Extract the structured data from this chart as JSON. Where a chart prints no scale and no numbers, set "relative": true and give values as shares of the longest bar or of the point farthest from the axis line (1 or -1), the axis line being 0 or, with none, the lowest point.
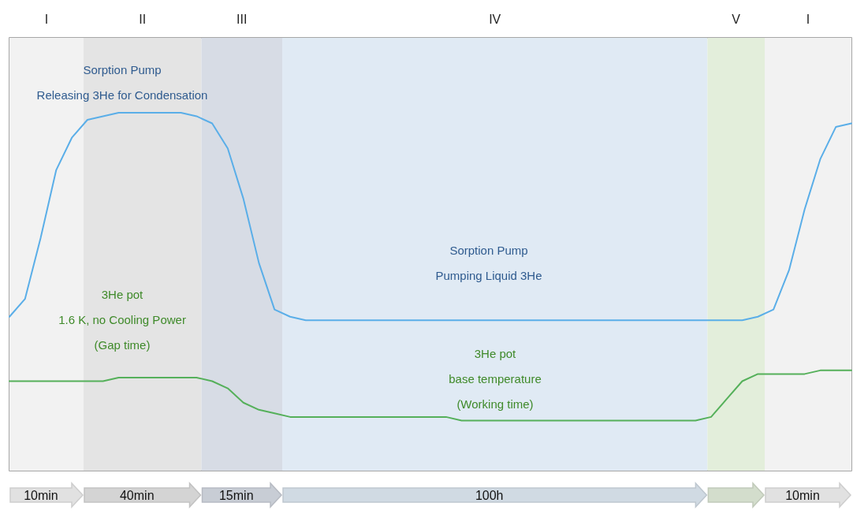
{
  "chart_data": {
    "type": "line",
    "relative": true,
    "marker": "none",
    "line_style": "solid",
    "categories": [
      null,
      null,
      null,
      null,
      null,
      null,
      null,
      null,
      null,
      null,
      null,
      null,
      null,
      null,
      null,
      null,
      null,
      null,
      null,
      null,
      null,
      null,
      null,
      null,
      null,
      null,
      null,
      null,
      null,
      null,
      null,
      null,
      null,
      null,
      null,
      null,
      null,
      null,
      null,
      null,
      null,
      null,
      null,
      null,
      null,
      null,
      null,
      null,
      null,
      null,
      null,
      null,
      null,
      null,
      null
    ],
    "series": [
      {
        "color": "#5aaee8",
        "values": [
          0.43,
          0.48,
          0.65,
          0.84,
          0.93,
          0.98,
          0.99,
          1.0,
          1.0,
          1.0,
          1.0,
          1.0,
          0.99,
          0.97,
          0.9,
          0.76,
          0.58,
          0.45,
          0.43,
          0.42,
          0.42,
          0.42,
          0.42,
          0.42,
          0.42,
          0.42,
          0.42,
          0.42,
          0.42,
          0.42,
          0.42,
          0.42,
          0.42,
          0.42,
          0.42,
          0.42,
          0.42,
          0.42,
          0.42,
          0.42,
          0.42,
          0.42,
          0.42,
          0.42,
          0.42,
          0.42,
          0.42,
          0.42,
          0.43,
          0.45,
          0.56,
          0.73,
          0.87,
          0.96,
          0.97
        ]
      },
      {
        "color": "#55b05a",
        "values": [
          0.25,
          0.25,
          0.25,
          0.25,
          0.25,
          0.25,
          0.25,
          0.26,
          0.26,
          0.26,
          0.26,
          0.26,
          0.26,
          0.25,
          0.23,
          0.19,
          0.17,
          0.16,
          0.15,
          0.15,
          0.15,
          0.15,
          0.15,
          0.15,
          0.15,
          0.15,
          0.15,
          0.15,
          0.15,
          0.14,
          0.14,
          0.14,
          0.14,
          0.14,
          0.14,
          0.14,
          0.14,
          0.14,
          0.14,
          0.14,
          0.14,
          0.14,
          0.14,
          0.14,
          0.14,
          0.15,
          0.2,
          0.25,
          0.27,
          0.27,
          0.27,
          0.27,
          0.28,
          0.28,
          0.28
        ]
      }
    ],
    "annotations": [
      "I",
      "II",
      "III",
      "IV",
      "V",
      "I",
      "Sorption Pump\nReleasing 3He for Condensation",
      "3He pot\n1.6 K, no Cooling Power\n(Gap time)",
      "Sorption Pump\nPumping Liquid 3He",
      "3He pot\nbase temperature\n(Working time)",
      "10min",
      "40min",
      "15min",
      "100h",
      "10min"
    ]
  }
}
